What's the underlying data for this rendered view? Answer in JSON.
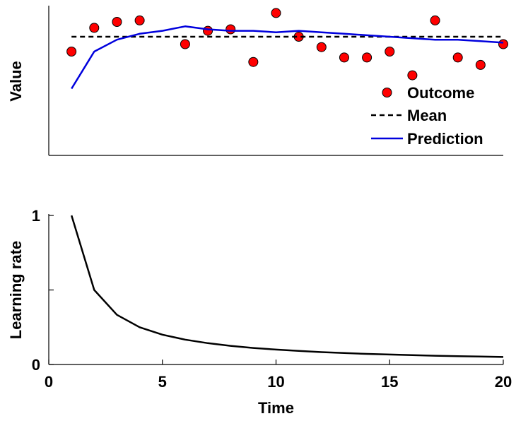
{
  "chart_data": [
    {
      "type": "line",
      "panel": "top",
      "title": "",
      "xlabel": "",
      "ylabel": "Value",
      "xlim": [
        0,
        20
      ],
      "ylim": [
        0,
        1
      ],
      "show_x_ticks": false,
      "show_y_ticks": false,
      "grid": false,
      "legend_placement": "bottom-right",
      "legend": [
        {
          "key": "outcome",
          "label": "Outcome"
        },
        {
          "key": "mean",
          "label": "Mean"
        },
        {
          "key": "prediction",
          "label": "Prediction"
        }
      ],
      "series": [
        {
          "key": "outcome",
          "kind": "scatter",
          "color": "#ff0000",
          "x": [
            1,
            2,
            3,
            4,
            6,
            7,
            8,
            9,
            10,
            11,
            12,
            13,
            14,
            15,
            16,
            17,
            18,
            19,
            20
          ],
          "y": [
            0.7,
            0.86,
            0.9,
            0.91,
            0.75,
            0.84,
            0.85,
            0.63,
            0.96,
            0.8,
            0.73,
            0.66,
            0.66,
            0.7,
            0.54,
            0.91,
            0.66,
            0.61,
            0.75
          ]
        },
        {
          "key": "mean",
          "kind": "line",
          "dash": true,
          "color": "#000000",
          "x": [
            1,
            20
          ],
          "y": [
            0.8,
            0.8
          ]
        },
        {
          "key": "prediction",
          "kind": "line",
          "color": "#0000dd",
          "x": [
            1,
            2,
            3,
            4,
            5,
            6,
            7,
            8,
            9,
            10,
            11,
            12,
            13,
            14,
            15,
            16,
            17,
            18,
            19,
            20
          ],
          "y": [
            0.45,
            0.7,
            0.78,
            0.82,
            0.84,
            0.87,
            0.85,
            0.84,
            0.84,
            0.83,
            0.84,
            0.83,
            0.82,
            0.81,
            0.8,
            0.79,
            0.78,
            0.78,
            0.77,
            0.76
          ]
        }
      ]
    },
    {
      "type": "line",
      "panel": "bottom",
      "title": "",
      "xlabel": "Time",
      "ylabel": "Learning rate",
      "xlim": [
        0,
        20
      ],
      "ylim": [
        0,
        1
      ],
      "xticks": [
        0,
        5,
        10,
        15,
        20
      ],
      "yticks": [
        0,
        0.5,
        1
      ],
      "ytick_labels": [
        "0",
        "",
        "1"
      ],
      "grid": false,
      "series": [
        {
          "key": "learning_rate",
          "kind": "line",
          "color": "#000000",
          "x": [
            1,
            2,
            3,
            4,
            5,
            6,
            7,
            8,
            9,
            10,
            11,
            12,
            13,
            14,
            15,
            16,
            17,
            18,
            19,
            20
          ],
          "y": [
            1.0,
            0.5,
            0.333,
            0.25,
            0.2,
            0.167,
            0.143,
            0.125,
            0.111,
            0.1,
            0.091,
            0.083,
            0.077,
            0.071,
            0.067,
            0.0625,
            0.059,
            0.056,
            0.053,
            0.05
          ]
        }
      ]
    }
  ]
}
